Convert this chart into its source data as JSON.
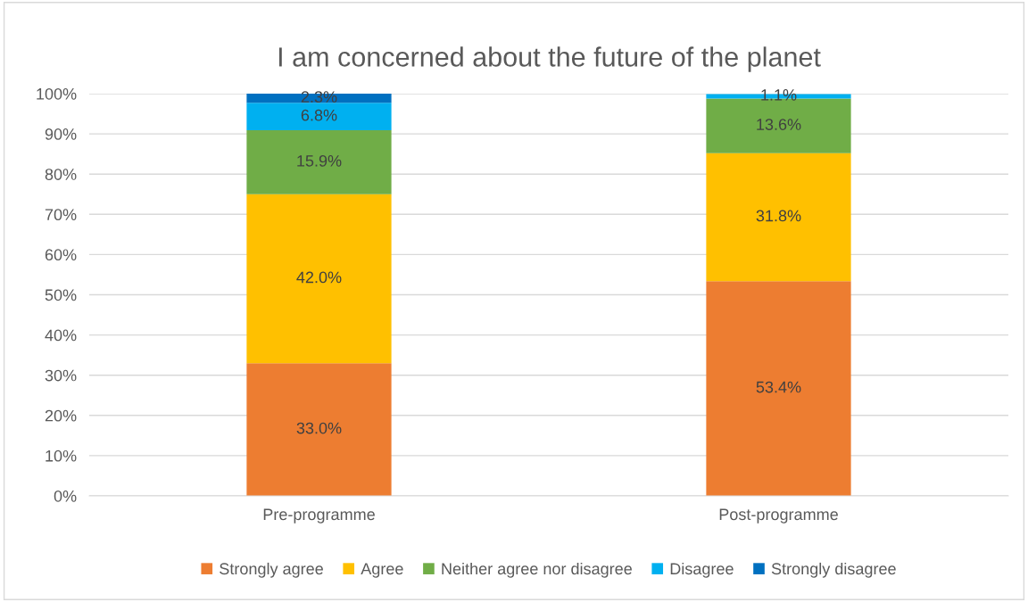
{
  "chart_data": {
    "type": "bar",
    "stacked": true,
    "title": "I am concerned about the future of the planet",
    "categories": [
      "Pre-programme",
      "Post-programme"
    ],
    "series": [
      {
        "name": "Strongly agree",
        "color": "#ed7d31",
        "values": [
          33.0,
          53.4
        ],
        "value_labels": [
          "33.0%",
          "53.4%"
        ]
      },
      {
        "name": "Agree",
        "color": "#ffc000",
        "values": [
          42.0,
          31.8
        ],
        "value_labels": [
          "42.0%",
          "31.8%"
        ]
      },
      {
        "name": "Neither agree nor disagree",
        "color": "#70ad47",
        "values": [
          15.9,
          13.6
        ],
        "value_labels": [
          "15.9%",
          "13.6%"
        ]
      },
      {
        "name": "Disagree",
        "color": "#00b0f0",
        "values": [
          6.8,
          1.1
        ],
        "value_labels": [
          "6.8%",
          "1.1%"
        ]
      },
      {
        "name": "Strongly disagree",
        "color": "#0070c0",
        "values": [
          2.3,
          null
        ],
        "value_labels": [
          "2.3%",
          null
        ]
      }
    ],
    "ylim": [
      0,
      100
    ],
    "yticks": [
      {
        "value": 0,
        "label": "0%"
      },
      {
        "value": 10,
        "label": "10%"
      },
      {
        "value": 20,
        "label": "20%"
      },
      {
        "value": 30,
        "label": "30%"
      },
      {
        "value": 40,
        "label": "40%"
      },
      {
        "value": 50,
        "label": "50%"
      },
      {
        "value": 60,
        "label": "60%"
      },
      {
        "value": 70,
        "label": "70%"
      },
      {
        "value": 80,
        "label": "80%"
      },
      {
        "value": 90,
        "label": "90%"
      },
      {
        "value": 100,
        "label": "100%"
      }
    ],
    "grid": "y",
    "legend": "bottom"
  }
}
